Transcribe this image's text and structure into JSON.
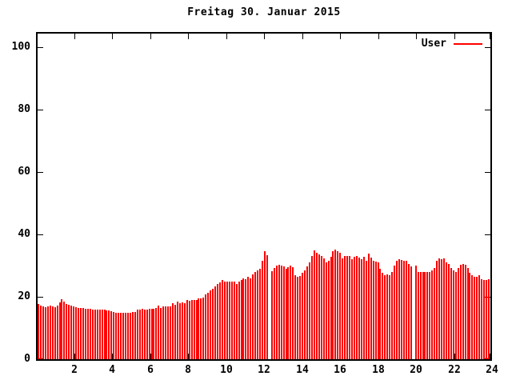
{
  "title": "Freitag 30. Januar 2015",
  "legend": {
    "label": "User",
    "sample_color": "#ff0000"
  },
  "colors": {
    "bar": "#ff0000",
    "axis": "#000000",
    "background": "#ffffff",
    "text": "#000000"
  },
  "chart_data": {
    "type": "bar",
    "title": "Freitag 30. Januar 2015",
    "series_name": "User",
    "xlabel": "",
    "ylabel": "",
    "x_unit": "hour of day",
    "interval_minutes": 7.5,
    "xlim": [
      0,
      24
    ],
    "ylim": [
      0,
      105
    ],
    "x_ticks": [
      2,
      4,
      6,
      8,
      10,
      12,
      14,
      16,
      18,
      20,
      22,
      24
    ],
    "y_ticks": [
      0,
      20,
      40,
      60,
      80,
      100
    ],
    "grid": false,
    "legend_position": "top-right-inside",
    "bar_style": "impulses",
    "values": [
      17.8,
      17.3,
      16.9,
      16.6,
      16.9,
      17.1,
      16.9,
      16.7,
      17.3,
      18.1,
      19.3,
      18.4,
      17.7,
      17.4,
      17.1,
      16.9,
      16.7,
      16.5,
      16.4,
      16.3,
      16.2,
      16.1,
      16.1,
      16.0,
      16.0,
      15.9,
      15.9,
      15.8,
      15.8,
      15.7,
      15.6,
      15.4,
      15.0,
      14.9,
      14.9,
      14.8,
      14.8,
      14.8,
      14.9,
      14.9,
      15.0,
      15.1,
      15.8,
      16.0,
      16.1,
      16.0,
      16.0,
      16.1,
      16.2,
      16.2,
      16.3,
      17.1,
      16.5,
      16.9,
      17.0,
      17.0,
      17.0,
      17.9,
      17.4,
      18.5,
      17.9,
      18.2,
      18.0,
      19.0,
      18.7,
      19.0,
      19.0,
      19.0,
      19.4,
      19.6,
      19.8,
      20.8,
      21.4,
      22.0,
      22.5,
      23.3,
      24.0,
      24.5,
      25.3,
      24.8,
      24.8,
      24.8,
      24.8,
      24.8,
      24.2,
      24.8,
      25.4,
      25.9,
      25.6,
      26.3,
      25.9,
      27.2,
      27.9,
      28.5,
      28.9,
      31.5,
      34.5,
      33.3,
      null,
      28.2,
      29.3,
      30.0,
      30.3,
      30.0,
      29.8,
      29.0,
      29.5,
      30.0,
      29.5,
      27.0,
      26.4,
      26.6,
      27.7,
      28.5,
      29.7,
      31.0,
      33.0,
      34.9,
      34.0,
      33.6,
      33.0,
      32.4,
      31.0,
      31.5,
      32.8,
      34.6,
      35.2,
      34.6,
      34.0,
      32.4,
      33.0,
      33.2,
      33.0,
      32.0,
      32.7,
      33.0,
      32.5,
      32.0,
      32.7,
      31.6,
      33.9,
      32.5,
      31.6,
      31.2,
      31.0,
      29.0,
      27.7,
      26.8,
      27.2,
      27.0,
      28.0,
      30.0,
      31.5,
      32.0,
      31.8,
      31.5,
      31.5,
      30.6,
      29.8,
      null,
      30.0,
      28.0,
      28.0,
      28.0,
      28.0,
      27.9,
      28.0,
      28.4,
      29.3,
      31.5,
      32.3,
      32.0,
      32.3,
      31.0,
      30.6,
      29.3,
      28.4,
      28.0,
      29.3,
      30.2,
      30.6,
      30.2,
      29.3,
      27.6,
      26.8,
      26.4,
      26.4,
      26.8,
      25.6,
      25.5,
      25.5,
      25.6
    ]
  }
}
